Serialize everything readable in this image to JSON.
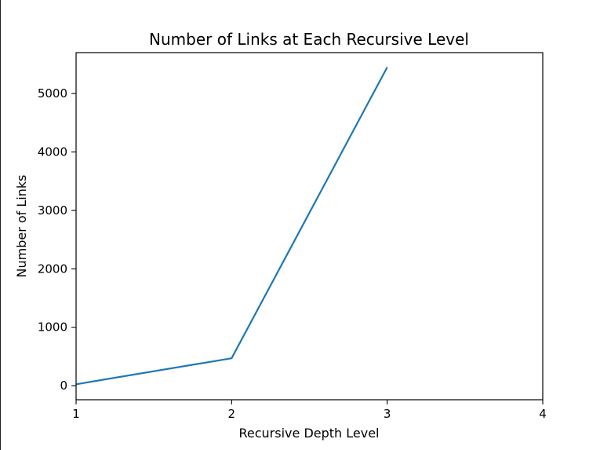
{
  "chart_data": {
    "type": "line",
    "title": "Number of Links at Each Recursive Level",
    "xlabel": "Recursive Depth Level",
    "ylabel": "Number of Links",
    "xlim": [
      1,
      4
    ],
    "ylim": [
      -240,
      5700
    ],
    "x_ticks": [
      1,
      2,
      3,
      4
    ],
    "y_ticks": [
      0,
      1000,
      2000,
      3000,
      4000,
      5000
    ],
    "grid": false,
    "series": [
      {
        "color": "#1f77b4",
        "x": [
          1,
          2,
          3
        ],
        "y": [
          25,
          470,
          5450
        ]
      }
    ]
  }
}
